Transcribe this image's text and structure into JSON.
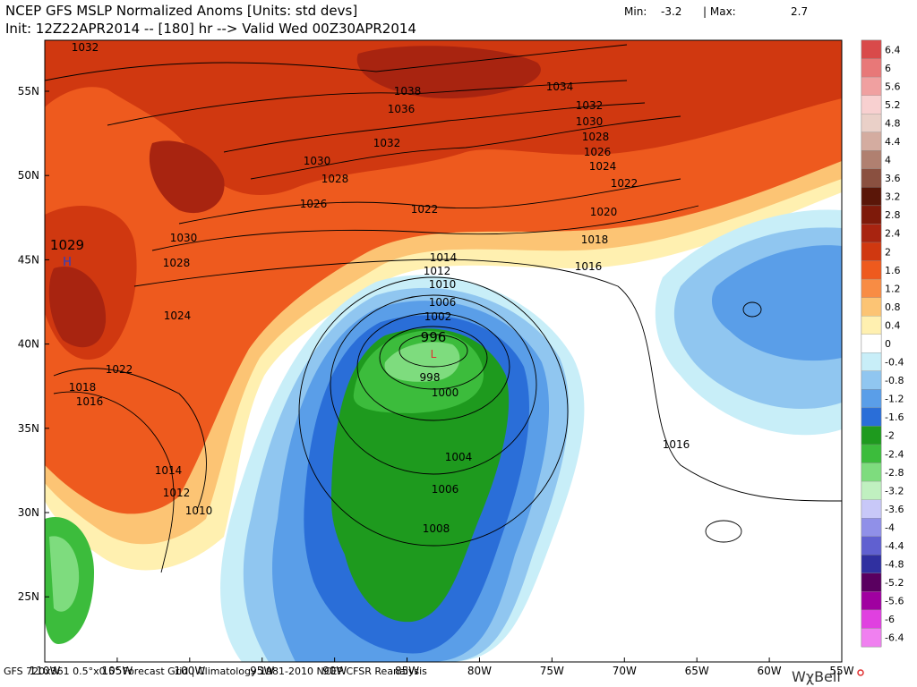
{
  "header": {
    "title": "NCEP GFS MSLP Normalized Anoms [Units: std devs]",
    "init": "Init: 12Z22APR2014 -- [180] hr --> Valid Wed 00Z30APR2014",
    "min_label": "Min:",
    "min_value": "-3.2",
    "separator": "| Max:",
    "max_value": "2.7"
  },
  "map": {
    "lat_labels": [
      "55N",
      "50N",
      "45N",
      "40N",
      "35N",
      "30N",
      "25N"
    ],
    "lon_labels": [
      "110W",
      "105W",
      "100W",
      "95W",
      "90W",
      "85W",
      "80W",
      "75W",
      "70W",
      "65W",
      "60W",
      "55W"
    ],
    "isobar_labels": [
      "1032",
      "1038",
      "1036",
      "1034",
      "1032",
      "1030",
      "1032",
      "1028",
      "1026",
      "1024",
      "1022",
      "1030",
      "1028",
      "1026",
      "1022",
      "1020",
      "1018",
      "1030",
      "1028",
      "1014",
      "1012",
      "1016",
      "1010",
      "1006",
      "1002",
      "1024",
      "996",
      "998",
      "1000",
      "1022",
      "1018",
      "1016",
      "1014",
      "1012",
      "1004",
      "1006",
      "1016",
      "1010",
      "1008"
    ],
    "high_value": "1029",
    "high_symbol": "H",
    "low_symbol": "L"
  },
  "colorbar": {
    "ticks": [
      6.4,
      6,
      5.6,
      5.2,
      4.8,
      4.4,
      4,
      3.6,
      3.2,
      2.8,
      2.4,
      2,
      1.6,
      1.2,
      0.8,
      0.4,
      0,
      -0.4,
      -0.8,
      -1.2,
      -1.6,
      -2,
      -2.4,
      -2.8,
      -3.2,
      -3.6,
      -4,
      -4.4,
      -4.8,
      -5.2,
      -5.6,
      -6,
      -6.4
    ],
    "colors": [
      "#d94a4a",
      "#e87878",
      "#f0a0a0",
      "#f8d0d0",
      "#ead0c8",
      "#d4aca0",
      "#b08070",
      "#8a5040",
      "#5a1608",
      "#7e1a0a",
      "#a82410",
      "#d03810",
      "#ee5a1e",
      "#f88c44",
      "#fcc474",
      "#fff0b0",
      "#ffffff",
      "#c8eef8",
      "#90c6f0",
      "#5a9ee8",
      "#2a6ed8",
      "#1e9a1e",
      "#3cbc3c",
      "#7edc7e",
      "#c0f0c0",
      "#c8c8f8",
      "#9090e8",
      "#6060d0",
      "#3030a0",
      "#5a0060",
      "#a000a0",
      "#e040e0",
      "#f080f0"
    ]
  },
  "footer": {
    "source": "GFS 720x361 0.5°x0.5° Forecast Grid | Climatology 1981-2010 NCEP CFSR Reanalysis",
    "logo": "WχBell"
  }
}
